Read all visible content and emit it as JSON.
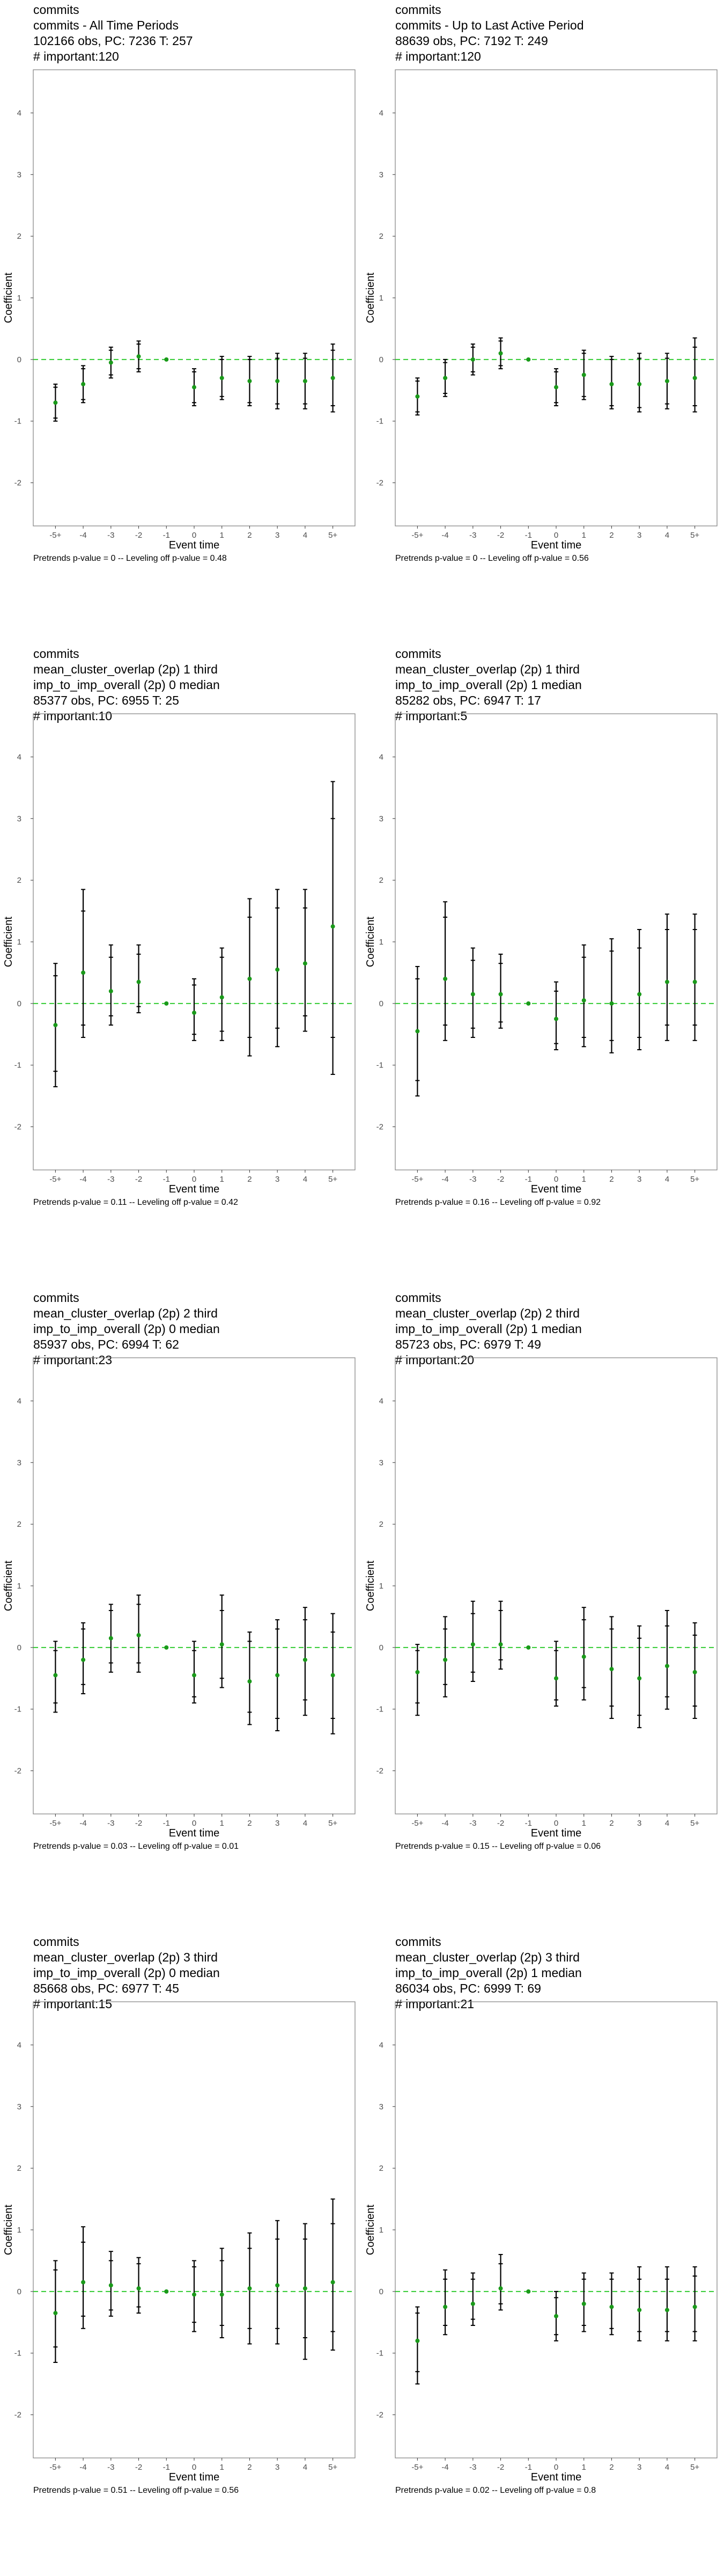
{
  "chart_data": [
    {
      "type": "scatter",
      "title_lines": [
        "commits",
        "commits - All Time Periods",
        "102166 obs, PC: 7236 T: 257",
        "# important:120"
      ],
      "xlabel": "Event time",
      "ylabel": "Coefficient",
      "categories": [
        "-5+",
        "-4",
        "-3",
        "-2",
        "-1",
        "0",
        "1",
        "2",
        "3",
        "4",
        "5+"
      ],
      "ylim": [
        -2.7,
        4.7
      ],
      "yticks": [
        -2,
        -1,
        0,
        1,
        2,
        3,
        4
      ],
      "estimates": [
        -0.7,
        -0.4,
        -0.05,
        0.05,
        0.0,
        -0.45,
        -0.3,
        -0.35,
        -0.35,
        -0.35,
        -0.3
      ],
      "ci_95": [
        [
          -1.0,
          -0.4
        ],
        [
          -0.7,
          -0.1
        ],
        [
          -0.3,
          0.2
        ],
        [
          -0.2,
          0.3
        ],
        [
          0.0,
          0.0
        ],
        [
          -0.75,
          -0.15
        ],
        [
          -0.65,
          0.05
        ],
        [
          -0.75,
          0.05
        ],
        [
          -0.8,
          0.1
        ],
        [
          -0.8,
          0.1
        ],
        [
          -0.85,
          0.25
        ]
      ],
      "ci_90": [
        [
          -0.95,
          -0.45
        ],
        [
          -0.65,
          -0.15
        ],
        [
          -0.25,
          0.15
        ],
        [
          -0.15,
          0.25
        ],
        [
          0.0,
          0.0
        ],
        [
          -0.7,
          -0.2
        ],
        [
          -0.6,
          0.0
        ],
        [
          -0.7,
          0.0
        ],
        [
          -0.72,
          0.02
        ],
        [
          -0.72,
          0.02
        ],
        [
          -0.75,
          0.15
        ]
      ],
      "footnote": "Pretrends p-value = 0 -- Leveling off p-value = 0.48"
    },
    {
      "type": "scatter",
      "title_lines": [
        "commits",
        "commits - Up to Last Active Period",
        "88639 obs, PC: 7192 T: 249",
        "# important:120"
      ],
      "xlabel": "Event time",
      "ylabel": "Coefficient",
      "categories": [
        "-5+",
        "-4",
        "-3",
        "-2",
        "-1",
        "0",
        "1",
        "2",
        "3",
        "4",
        "5+"
      ],
      "ylim": [
        -2.7,
        4.7
      ],
      "yticks": [
        -2,
        -1,
        0,
        1,
        2,
        3,
        4
      ],
      "estimates": [
        -0.6,
        -0.3,
        0.0,
        0.1,
        0.0,
        -0.45,
        -0.25,
        -0.4,
        -0.4,
        -0.35,
        -0.3
      ],
      "ci_95": [
        [
          -0.9,
          -0.3
        ],
        [
          -0.6,
          0.0
        ],
        [
          -0.25,
          0.25
        ],
        [
          -0.15,
          0.35
        ],
        [
          0.0,
          0.0
        ],
        [
          -0.75,
          -0.15
        ],
        [
          -0.65,
          0.15
        ],
        [
          -0.8,
          0.05
        ],
        [
          -0.85,
          0.1
        ],
        [
          -0.8,
          0.1
        ],
        [
          -0.85,
          0.35
        ]
      ],
      "ci_90": [
        [
          -0.85,
          -0.35
        ],
        [
          -0.55,
          -0.05
        ],
        [
          -0.2,
          0.2
        ],
        [
          -0.1,
          0.3
        ],
        [
          0.0,
          0.0
        ],
        [
          -0.7,
          -0.2
        ],
        [
          -0.6,
          0.1
        ],
        [
          -0.75,
          0.0
        ],
        [
          -0.78,
          0.02
        ],
        [
          -0.72,
          0.02
        ],
        [
          -0.75,
          0.2
        ]
      ],
      "footnote": "Pretrends p-value = 0 -- Leveling off p-value = 0.56"
    },
    {
      "type": "scatter",
      "title_lines": [
        "commits",
        "mean_cluster_overlap (2p) 1 third",
        "imp_to_imp_overall (2p) 0 median",
        "85377 obs, PC: 6955 T: 25",
        "# important:10"
      ],
      "xlabel": "Event time",
      "ylabel": "Coefficient",
      "categories": [
        "-5+",
        "-4",
        "-3",
        "-2",
        "-1",
        "0",
        "1",
        "2",
        "3",
        "4",
        "5+"
      ],
      "ylim": [
        -2.7,
        4.7
      ],
      "yticks": [
        -2,
        -1,
        0,
        1,
        2,
        3,
        4
      ],
      "estimates": [
        -0.35,
        0.5,
        0.2,
        0.35,
        0.0,
        -0.15,
        0.1,
        0.4,
        0.55,
        0.65,
        1.25
      ],
      "ci_95": [
        [
          -1.35,
          0.65
        ],
        [
          -0.55,
          1.85
        ],
        [
          -0.35,
          0.95
        ],
        [
          -0.15,
          0.95
        ],
        [
          0.0,
          0.0
        ],
        [
          -0.6,
          0.4
        ],
        [
          -0.6,
          0.9
        ],
        [
          -0.85,
          1.7
        ],
        [
          -0.7,
          1.85
        ],
        [
          -0.45,
          1.85
        ],
        [
          -1.15,
          3.6
        ]
      ],
      "ci_90": [
        [
          -1.1,
          0.45
        ],
        [
          -0.35,
          1.5
        ],
        [
          -0.2,
          0.75
        ],
        [
          -0.05,
          0.8
        ],
        [
          0.0,
          0.0
        ],
        [
          -0.5,
          0.3
        ],
        [
          -0.45,
          0.75
        ],
        [
          -0.55,
          1.4
        ],
        [
          -0.4,
          1.55
        ],
        [
          -0.2,
          1.55
        ],
        [
          -0.55,
          3.0
        ]
      ],
      "footnote": "Pretrends p-value = 0.11 -- Leveling off p-value = 0.42"
    },
    {
      "type": "scatter",
      "title_lines": [
        "commits",
        "mean_cluster_overlap (2p) 1 third",
        "imp_to_imp_overall (2p) 1 median",
        "85282 obs, PC: 6947 T: 17",
        "# important:5"
      ],
      "xlabel": "Event time",
      "ylabel": "Coefficient",
      "categories": [
        "-5+",
        "-4",
        "-3",
        "-2",
        "-1",
        "0",
        "1",
        "2",
        "3",
        "4",
        "5+"
      ],
      "ylim": [
        -2.7,
        4.7
      ],
      "yticks": [
        -2,
        -1,
        0,
        1,
        2,
        3,
        4
      ],
      "estimates": [
        -0.45,
        0.4,
        0.15,
        0.15,
        0.0,
        -0.25,
        0.05,
        0.0,
        0.15,
        0.35,
        0.35
      ],
      "ci_95": [
        [
          -1.5,
          0.6
        ],
        [
          -0.6,
          1.65
        ],
        [
          -0.55,
          0.9
        ],
        [
          -0.4,
          0.8
        ],
        [
          0.0,
          0.0
        ],
        [
          -0.75,
          0.35
        ],
        [
          -0.7,
          0.95
        ],
        [
          -0.8,
          1.05
        ],
        [
          -0.75,
          1.2
        ],
        [
          -0.6,
          1.45
        ],
        [
          -0.6,
          1.45
        ]
      ],
      "ci_90": [
        [
          -1.25,
          0.4
        ],
        [
          -0.35,
          1.4
        ],
        [
          -0.4,
          0.7
        ],
        [
          -0.3,
          0.65
        ],
        [
          0.0,
          0.0
        ],
        [
          -0.65,
          0.2
        ],
        [
          -0.55,
          0.75
        ],
        [
          -0.6,
          0.85
        ],
        [
          -0.55,
          0.9
        ],
        [
          -0.35,
          1.2
        ],
        [
          -0.35,
          1.2
        ]
      ],
      "footnote": "Pretrends p-value = 0.16 -- Leveling off p-value = 0.92"
    },
    {
      "type": "scatter",
      "title_lines": [
        "commits",
        "mean_cluster_overlap (2p) 2 third",
        "imp_to_imp_overall (2p) 0 median",
        "85937 obs, PC: 6994 T: 62",
        "# important:23"
      ],
      "xlabel": "Event time",
      "ylabel": "Coefficient",
      "categories": [
        "-5+",
        "-4",
        "-3",
        "-2",
        "-1",
        "0",
        "1",
        "2",
        "3",
        "4",
        "5+"
      ],
      "ylim": [
        -2.7,
        4.7
      ],
      "yticks": [
        -2,
        -1,
        0,
        1,
        2,
        3,
        4
      ],
      "estimates": [
        -0.45,
        -0.2,
        0.15,
        0.2,
        0.0,
        -0.45,
        0.05,
        -0.55,
        -0.45,
        -0.2,
        -0.45
      ],
      "ci_95": [
        [
          -1.05,
          0.1
        ],
        [
          -0.75,
          0.4
        ],
        [
          -0.4,
          0.7
        ],
        [
          -0.4,
          0.85
        ],
        [
          0.0,
          0.0
        ],
        [
          -0.9,
          0.1
        ],
        [
          -0.65,
          0.85
        ],
        [
          -1.25,
          0.25
        ],
        [
          -1.35,
          0.45
        ],
        [
          -1.1,
          0.65
        ],
        [
          -1.4,
          0.55
        ]
      ],
      "ci_90": [
        [
          -0.9,
          -0.05
        ],
        [
          -0.6,
          0.3
        ],
        [
          -0.25,
          0.6
        ],
        [
          -0.25,
          0.7
        ],
        [
          0.0,
          0.0
        ],
        [
          -0.8,
          -0.05
        ],
        [
          -0.5,
          0.6
        ],
        [
          -1.05,
          0.1
        ],
        [
          -1.15,
          0.3
        ],
        [
          -0.85,
          0.45
        ],
        [
          -1.15,
          0.25
        ]
      ],
      "footnote": "Pretrends p-value = 0.03 -- Leveling off p-value = 0.01"
    },
    {
      "type": "scatter",
      "title_lines": [
        "commits",
        "mean_cluster_overlap (2p) 2 third",
        "imp_to_imp_overall (2p) 1 median",
        "85723 obs, PC: 6979 T: 49",
        "# important:20"
      ],
      "xlabel": "Event time",
      "ylabel": "Coefficient",
      "categories": [
        "-5+",
        "-4",
        "-3",
        "-2",
        "-1",
        "0",
        "1",
        "2",
        "3",
        "4",
        "5+"
      ],
      "ylim": [
        -2.7,
        4.7
      ],
      "yticks": [
        -2,
        -1,
        0,
        1,
        2,
        3,
        4
      ],
      "estimates": [
        -0.4,
        -0.2,
        0.05,
        0.05,
        0.0,
        -0.5,
        -0.15,
        -0.35,
        -0.5,
        -0.3,
        -0.4
      ],
      "ci_95": [
        [
          -1.1,
          0.05
        ],
        [
          -0.8,
          0.5
        ],
        [
          -0.55,
          0.75
        ],
        [
          -0.35,
          0.75
        ],
        [
          0.0,
          0.0
        ],
        [
          -0.95,
          0.1
        ],
        [
          -0.85,
          0.65
        ],
        [
          -1.15,
          0.5
        ],
        [
          -1.3,
          0.35
        ],
        [
          -1.0,
          0.6
        ],
        [
          -1.15,
          0.4
        ]
      ],
      "ci_90": [
        [
          -0.9,
          -0.05
        ],
        [
          -0.6,
          0.3
        ],
        [
          -0.4,
          0.55
        ],
        [
          -0.2,
          0.6
        ],
        [
          0.0,
          0.0
        ],
        [
          -0.85,
          -0.05
        ],
        [
          -0.65,
          0.45
        ],
        [
          -0.95,
          0.3
        ],
        [
          -1.1,
          0.15
        ],
        [
          -0.8,
          0.35
        ],
        [
          -0.95,
          0.2
        ]
      ],
      "footnote": "Pretrends p-value = 0.15 -- Leveling off p-value = 0.06"
    },
    {
      "type": "scatter",
      "title_lines": [
        "commits",
        "mean_cluster_overlap (2p) 3 third",
        "imp_to_imp_overall (2p) 0 median",
        "85668 obs, PC: 6977 T: 45",
        "# important:15"
      ],
      "xlabel": "Event time",
      "ylabel": "Coefficient",
      "categories": [
        "-5+",
        "-4",
        "-3",
        "-2",
        "-1",
        "0",
        "1",
        "2",
        "3",
        "4",
        "5+"
      ],
      "ylim": [
        -2.7,
        4.7
      ],
      "yticks": [
        -2,
        -1,
        0,
        1,
        2,
        3,
        4
      ],
      "estimates": [
        -0.35,
        0.15,
        0.1,
        0.05,
        0.0,
        -0.05,
        -0.05,
        0.05,
        0.1,
        0.05,
        0.15
      ],
      "ci_95": [
        [
          -1.15,
          0.5
        ],
        [
          -0.6,
          1.05
        ],
        [
          -0.4,
          0.65
        ],
        [
          -0.35,
          0.55
        ],
        [
          0.0,
          0.0
        ],
        [
          -0.65,
          0.5
        ],
        [
          -0.75,
          0.7
        ],
        [
          -0.85,
          0.95
        ],
        [
          -0.85,
          1.15
        ],
        [
          -1.1,
          1.1
        ],
        [
          -0.95,
          1.5
        ]
      ],
      "ci_90": [
        [
          -0.9,
          0.35
        ],
        [
          -0.4,
          0.8
        ],
        [
          -0.3,
          0.5
        ],
        [
          -0.25,
          0.45
        ],
        [
          0.0,
          0.0
        ],
        [
          -0.5,
          0.4
        ],
        [
          -0.55,
          0.5
        ],
        [
          -0.6,
          0.7
        ],
        [
          -0.6,
          0.85
        ],
        [
          -0.75,
          0.85
        ],
        [
          -0.65,
          1.1
        ]
      ],
      "footnote": "Pretrends p-value = 0.51 -- Leveling off p-value = 0.56"
    },
    {
      "type": "scatter",
      "title_lines": [
        "commits",
        "mean_cluster_overlap (2p) 3 third",
        "imp_to_imp_overall (2p) 1 median",
        "86034 obs, PC: 6999 T: 69",
        "# important:21"
      ],
      "xlabel": "Event time",
      "ylabel": "Coefficient",
      "categories": [
        "-5+",
        "-4",
        "-3",
        "-2",
        "-1",
        "0",
        "1",
        "2",
        "3",
        "4",
        "5+"
      ],
      "ylim": [
        -2.7,
        4.7
      ],
      "yticks": [
        -2,
        -1,
        0,
        1,
        2,
        3,
        4
      ],
      "estimates": [
        -0.8,
        -0.25,
        -0.2,
        0.05,
        0.0,
        -0.4,
        -0.2,
        -0.25,
        -0.3,
        -0.3,
        -0.25
      ],
      "ci_95": [
        [
          -1.5,
          -0.25
        ],
        [
          -0.7,
          0.35
        ],
        [
          -0.55,
          0.3
        ],
        [
          -0.3,
          0.6
        ],
        [
          0.0,
          0.0
        ],
        [
          -0.8,
          0.0
        ],
        [
          -0.65,
          0.3
        ],
        [
          -0.7,
          0.3
        ],
        [
          -0.8,
          0.4
        ],
        [
          -0.8,
          0.4
        ],
        [
          -0.8,
          0.4
        ]
      ],
      "ci_90": [
        [
          -1.3,
          -0.35
        ],
        [
          -0.55,
          0.2
        ],
        [
          -0.45,
          0.2
        ],
        [
          -0.2,
          0.45
        ],
        [
          0.0,
          0.0
        ],
        [
          -0.7,
          -0.1
        ],
        [
          -0.55,
          0.2
        ],
        [
          -0.6,
          0.2
        ],
        [
          -0.65,
          0.2
        ],
        [
          -0.65,
          0.2
        ],
        [
          -0.65,
          0.25
        ]
      ],
      "footnote": "Pretrends p-value = 0.02 -- Leveling off p-value = 0.8"
    }
  ],
  "colors": {
    "estimate_point": "#1a9a1a",
    "zero_line": "#33cc33",
    "error_bar": "#000000",
    "panel_border": "#7f7f7f"
  }
}
